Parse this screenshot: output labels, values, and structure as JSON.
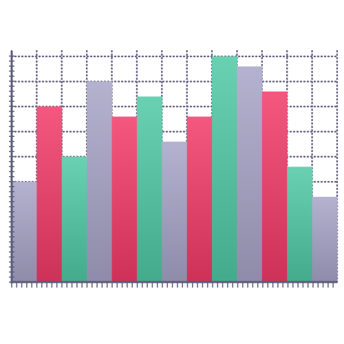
{
  "chart_data": {
    "type": "bar",
    "categories": [
      null,
      null,
      null,
      null,
      null,
      null,
      null,
      null,
      null,
      null,
      null,
      null,
      null
    ],
    "values": [
      4.0,
      7.0,
      5.0,
      8.0,
      6.6,
      7.4,
      5.6,
      6.6,
      9.0,
      8.6,
      7.6,
      4.6,
      3.4
    ],
    "colors": [
      "#a8a4c8",
      "#f23a68",
      "#4fc9a4",
      "#a8a4c8",
      "#f23a68",
      "#4fc9a4",
      "#a8a4c8",
      "#f23a68",
      "#4fc9a4",
      "#a8a4c8",
      "#f23a68",
      "#4fc9a4",
      "#a8a4c8"
    ],
    "ylim": [
      0,
      9
    ],
    "yticks": [
      0,
      1,
      2,
      3,
      4,
      5,
      6,
      7,
      8,
      9
    ],
    "grid": true,
    "tick_labels": false
  }
}
